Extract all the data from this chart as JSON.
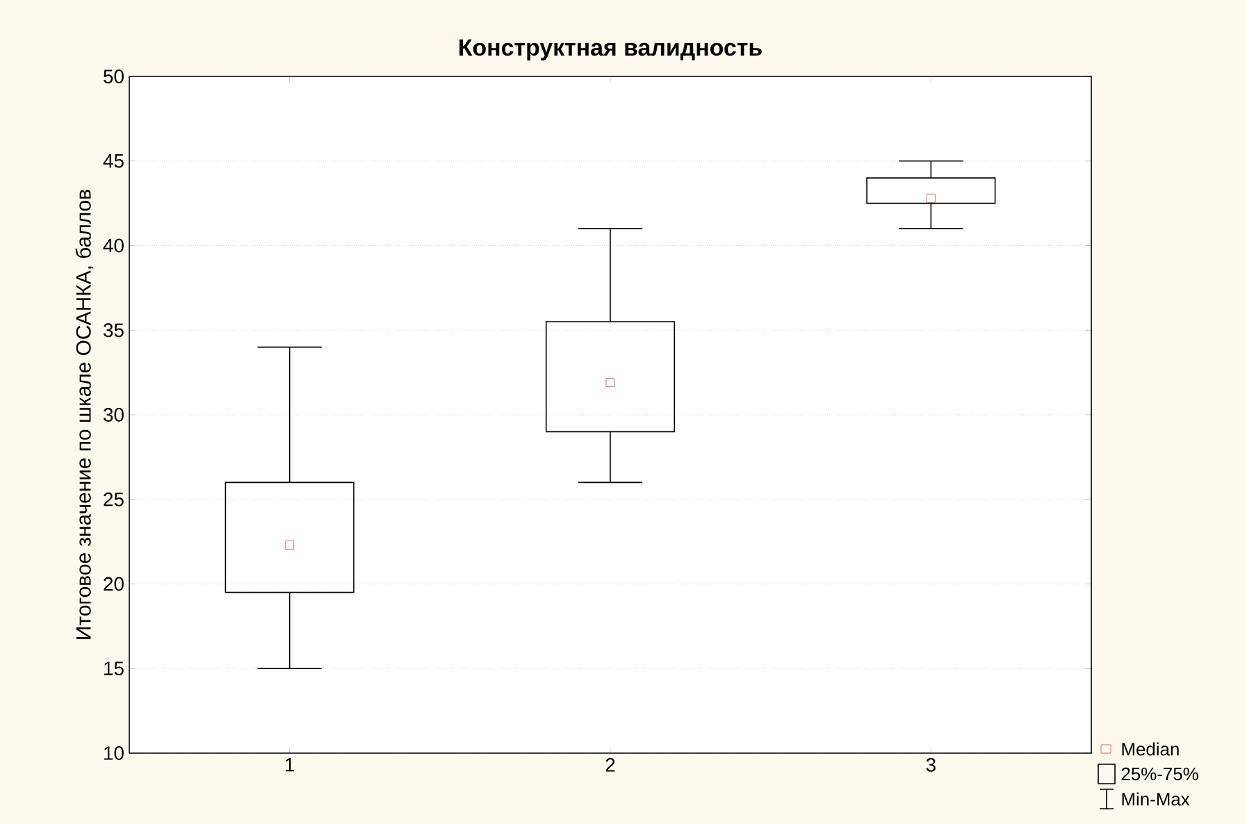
{
  "chart_data": {
    "type": "box",
    "title": "**Конструктная валидность**",
    "ylabel": "Итоговое значение по шкале ОСАНКА, баллов",
    "categories": [
      "1",
      "2",
      "3"
    ],
    "boxes": [
      {
        "low": 15,
        "q1": 19.5,
        "median": 22.3,
        "q3": 26,
        "high": 34
      },
      {
        "low": 26,
        "q1": 29,
        "median": 31.9,
        "q3": 35.5,
        "high": 41
      },
      {
        "low": 41,
        "q1": 42.5,
        "median": 42.8,
        "q3": 44,
        "high": 45
      }
    ],
    "color": "#000000",
    "ylim": [
      10,
      50
    ],
    "yticks": [
      10,
      15,
      20,
      25,
      30,
      35,
      40,
      45,
      50
    ],
    "grid": "y",
    "annotations": [
      "Median",
      "25%-75%",
      "Min-Max"
    ]
  }
}
